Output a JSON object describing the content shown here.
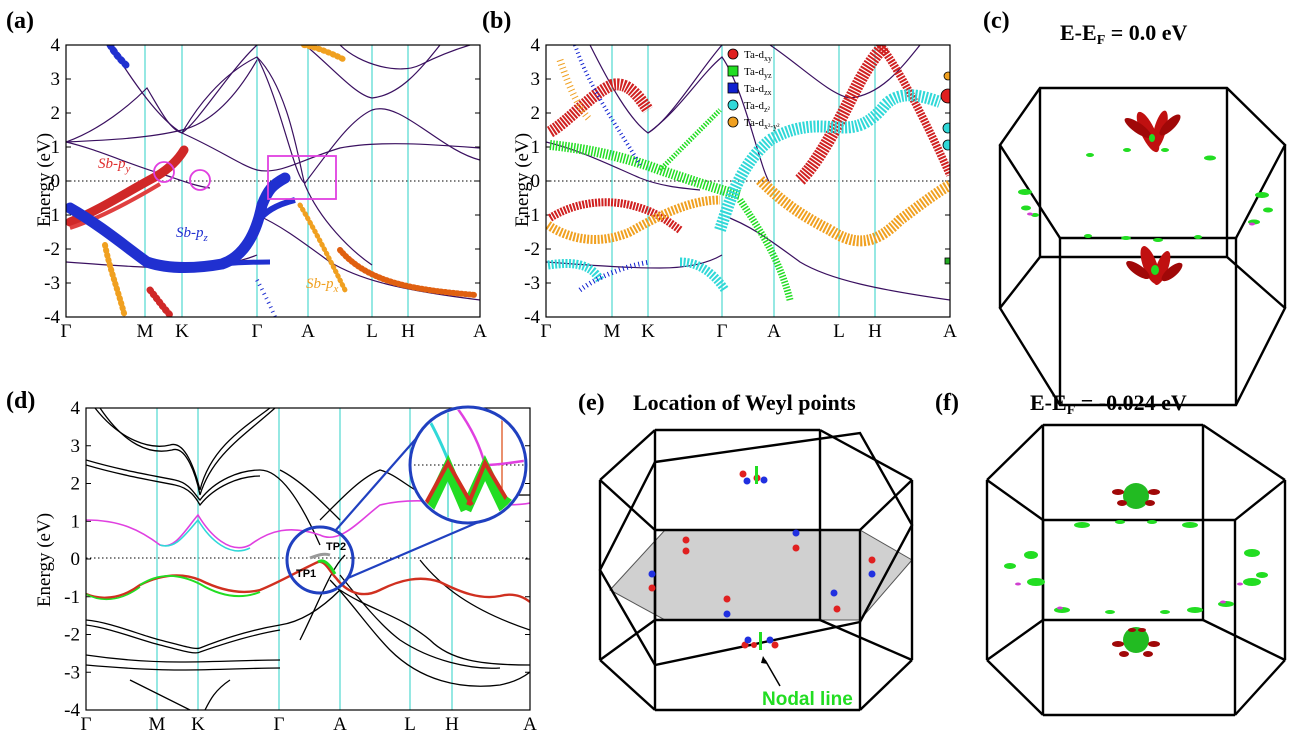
{
  "panels": {
    "a": {
      "label": "(a)"
    },
    "b": {
      "label": "(b)"
    },
    "c": {
      "label": "(c)",
      "title": "E-E",
      "sub": "F",
      "title_rest": " = 0.0 eV"
    },
    "d": {
      "label": "(d)"
    },
    "e": {
      "label": "(e)",
      "title": "Location of Weyl points",
      "nodal_label": "Nodal line"
    },
    "f": {
      "label": "(f)",
      "title": "E-E",
      "sub": "F",
      "title_rest": " = -0.024 eV"
    }
  },
  "annotations_a": {
    "py": "Sb-p",
    "py_sub": "y",
    "pz": "Sb-p",
    "pz_sub": "z",
    "px": "Sb-p",
    "px_sub": "x",
    "py_color": "#e03030",
    "pz_color": "#2030d0",
    "px_color": "#f0a020"
  },
  "annotations_d": {
    "tp1": "TP1",
    "tp2": "TP2"
  },
  "colors": {
    "cyan_lines": "#4fd8d0",
    "magenta": "#e040e0",
    "red": "#d03020",
    "green": "#22dd22",
    "blue": "#2030d0",
    "orange": "#f0a020",
    "dark_red_surface": "#c01010"
  },
  "chart_data": [
    {
      "type": "line",
      "panel": "a",
      "ylabel": "Energy (eV)",
      "ylim": [
        -4,
        4
      ],
      "yticks": [
        "4",
        "3",
        "2",
        "1",
        "0",
        "-1",
        "-2",
        "-3",
        "-4"
      ],
      "k_labels": [
        "Γ",
        "M",
        "K",
        "Γ",
        "A",
        "L",
        "H",
        "A"
      ],
      "series": [
        {
          "name": "Sb-py",
          "color": "#e03030"
        },
        {
          "name": "Sb-pz",
          "color": "#2030d0"
        },
        {
          "name": "Sb-px",
          "color": "#f0a020"
        }
      ]
    },
    {
      "type": "line",
      "panel": "b",
      "ylabel": "Energy (eV)",
      "ylim": [
        -4,
        4
      ],
      "yticks": [
        "4",
        "3",
        "2",
        "1",
        "0",
        "-1",
        "-2",
        "-3",
        "-4"
      ],
      "k_labels": [
        "Γ",
        "M",
        "K",
        "Γ",
        "A",
        "L",
        "H",
        "A"
      ],
      "legend": [
        {
          "name": "Ta-d",
          "sub": "xy",
          "color": "#e02020",
          "marker": "circle"
        },
        {
          "name": "Ta-d",
          "sub": "yz",
          "color": "#22dd22",
          "marker": "square"
        },
        {
          "name": "Ta-d",
          "sub": "zx",
          "color": "#1020d0",
          "marker": "square"
        },
        {
          "name": "Ta-d",
          "sub": "z²",
          "color": "#30d8d8",
          "marker": "circle"
        },
        {
          "name": "Ta-d",
          "sub": "x²-y²",
          "color": "#f0a020",
          "marker": "circle"
        }
      ]
    },
    {
      "type": "line",
      "panel": "d",
      "ylabel": "Energy (eV)",
      "ylim": [
        -4,
        4
      ],
      "yticks": [
        "4",
        "3",
        "2",
        "1",
        "0",
        "-1",
        "-2",
        "-3",
        "-4"
      ],
      "k_labels": [
        "Γ",
        "M",
        "K",
        "Γ",
        "A",
        "L",
        "H",
        "A"
      ]
    }
  ]
}
